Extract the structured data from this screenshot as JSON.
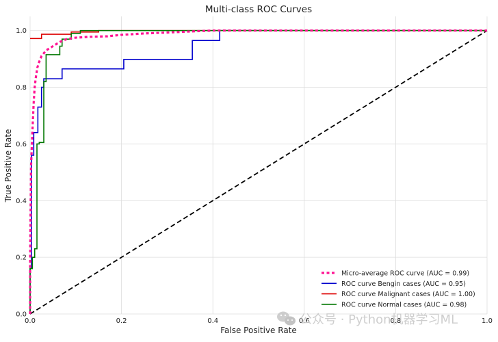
{
  "chart_data": {
    "type": "line",
    "title": "Multi-class ROC Curves",
    "xlabel": "False Positive Rate",
    "ylabel": "True Positive Rate",
    "xlim": [
      0.0,
      1.0
    ],
    "ylim": [
      0.0,
      1.05
    ],
    "grid": true,
    "legend_position": "lower-right",
    "xticks": [
      0.0,
      0.2,
      0.4,
      0.6,
      0.8,
      1.0
    ],
    "xtick_labels": [
      "0.0",
      "0.2",
      "0.4",
      "0.6",
      "0.8",
      "1.0"
    ],
    "yticks": [
      0.0,
      0.2,
      0.4,
      0.6,
      0.8,
      1.0
    ],
    "ytick_labels": [
      "0.0",
      "0.2",
      "0.4",
      "0.6",
      "0.8",
      "1.0"
    ],
    "series": [
      {
        "name": "Micro-average ROC curve (AUC = 0.99)",
        "color": "#ff1493",
        "style": "dotted",
        "step": false,
        "points": [
          [
            0.0,
            0.0
          ],
          [
            0.0,
            0.17
          ],
          [
            0.002,
            0.52
          ],
          [
            0.004,
            0.6
          ],
          [
            0.006,
            0.68
          ],
          [
            0.008,
            0.75
          ],
          [
            0.01,
            0.8
          ],
          [
            0.013,
            0.84
          ],
          [
            0.016,
            0.87
          ],
          [
            0.02,
            0.89
          ],
          [
            0.025,
            0.91
          ],
          [
            0.03,
            0.92
          ],
          [
            0.035,
            0.93
          ],
          [
            0.045,
            0.94
          ],
          [
            0.055,
            0.95
          ],
          [
            0.065,
            0.96
          ],
          [
            0.08,
            0.97
          ],
          [
            0.1,
            0.975
          ],
          [
            0.13,
            0.978
          ],
          [
            0.17,
            0.98
          ],
          [
            0.2,
            0.985
          ],
          [
            0.25,
            0.99
          ],
          [
            0.3,
            0.993
          ],
          [
            0.35,
            0.997
          ],
          [
            0.4,
            1.0
          ],
          [
            1.0,
            1.0
          ]
        ]
      },
      {
        "name": "ROC curve Bengin cases (AUC = 0.95)",
        "color": "#0000cd",
        "style": "solid",
        "step": true,
        "points": [
          [
            0.0,
            0.0
          ],
          [
            0.0,
            0.16
          ],
          [
            0.003,
            0.16
          ],
          [
            0.003,
            0.56
          ],
          [
            0.008,
            0.56
          ],
          [
            0.008,
            0.64
          ],
          [
            0.017,
            0.64
          ],
          [
            0.017,
            0.73
          ],
          [
            0.025,
            0.73
          ],
          [
            0.025,
            0.8
          ],
          [
            0.03,
            0.8
          ],
          [
            0.03,
            0.83
          ],
          [
            0.07,
            0.83
          ],
          [
            0.07,
            0.865
          ],
          [
            0.205,
            0.865
          ],
          [
            0.205,
            0.898
          ],
          [
            0.355,
            0.898
          ],
          [
            0.355,
            0.965
          ],
          [
            0.415,
            0.965
          ],
          [
            0.415,
            1.0
          ],
          [
            1.0,
            1.0
          ]
        ]
      },
      {
        "name": "ROC curve Malignant cases (AUC = 1.00)",
        "color": "#dd0000",
        "style": "solid",
        "step": true,
        "points": [
          [
            0.0,
            0.972
          ],
          [
            0.025,
            0.972
          ],
          [
            0.025,
            0.987
          ],
          [
            0.09,
            0.987
          ],
          [
            0.09,
            0.995
          ],
          [
            0.15,
            0.995
          ],
          [
            0.15,
            1.0
          ],
          [
            1.0,
            1.0
          ]
        ]
      },
      {
        "name": "ROC curve Normal cases (AUC = 0.98)",
        "color": "#007700",
        "style": "solid",
        "step": true,
        "points": [
          [
            0.0,
            0.0
          ],
          [
            0.0,
            0.16
          ],
          [
            0.005,
            0.16
          ],
          [
            0.005,
            0.2
          ],
          [
            0.01,
            0.2
          ],
          [
            0.01,
            0.23
          ],
          [
            0.015,
            0.23
          ],
          [
            0.015,
            0.6
          ],
          [
            0.02,
            0.6
          ],
          [
            0.02,
            0.605
          ],
          [
            0.03,
            0.605
          ],
          [
            0.03,
            0.82
          ],
          [
            0.035,
            0.82
          ],
          [
            0.035,
            0.915
          ],
          [
            0.065,
            0.915
          ],
          [
            0.065,
            0.945
          ],
          [
            0.07,
            0.945
          ],
          [
            0.07,
            0.97
          ],
          [
            0.09,
            0.97
          ],
          [
            0.09,
            0.99
          ],
          [
            0.11,
            0.99
          ],
          [
            0.11,
            1.0
          ],
          [
            1.0,
            1.0
          ]
        ]
      },
      {
        "name": "",
        "color": "#000000",
        "style": "dashed",
        "step": false,
        "in_legend": false,
        "points": [
          [
            0.0,
            0.0
          ],
          [
            1.0,
            1.0
          ]
        ]
      }
    ]
  },
  "watermark": {
    "icon": "wechat-icon",
    "text": "公众号 · Python机器学习ML"
  }
}
